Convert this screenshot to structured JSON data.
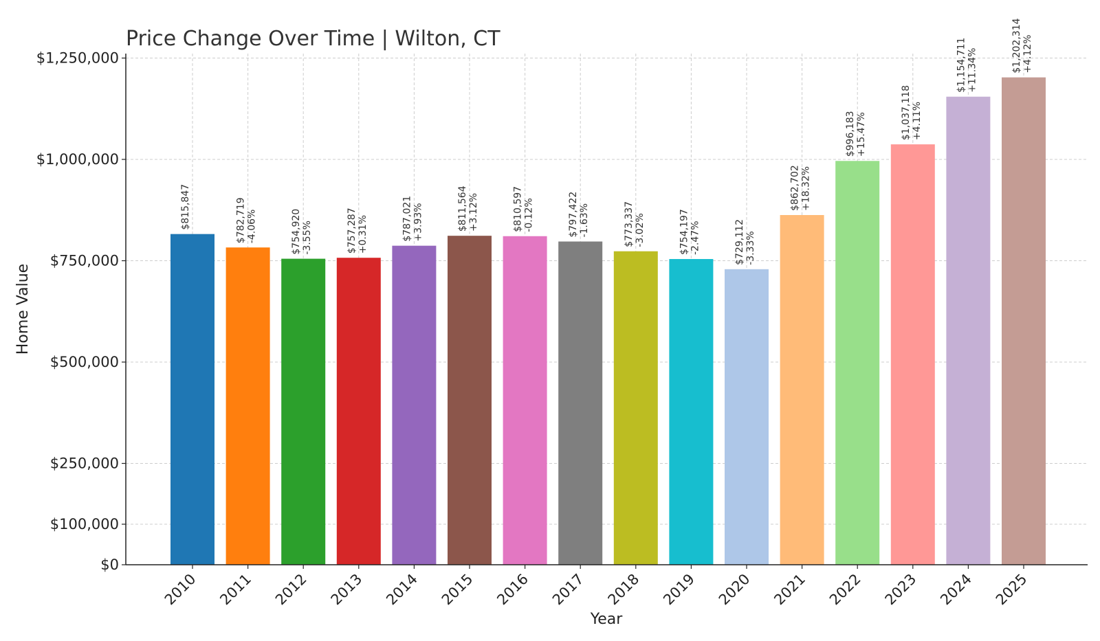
{
  "chart_data": {
    "type": "bar",
    "title": "Price Change Over Time | Wilton, CT",
    "xlabel": "Year",
    "ylabel": "Home Value",
    "categories": [
      "2010",
      "2011",
      "2012",
      "2013",
      "2014",
      "2015",
      "2016",
      "2017",
      "2018",
      "2019",
      "2020",
      "2021",
      "2022",
      "2023",
      "2024",
      "2025"
    ],
    "values": [
      815847,
      782719,
      754920,
      757287,
      787021,
      811564,
      810597,
      797422,
      773337,
      754197,
      729112,
      862702,
      996183,
      1037118,
      1154711,
      1202314
    ],
    "value_labels": [
      "$815,847",
      "$782,719",
      "$754,920",
      "$757,287",
      "$787,021",
      "$811,564",
      "$810,597",
      "$797,422",
      "$773,337",
      "$754,197",
      "$729,112",
      "$862,702",
      "$996,183",
      "$1,037,118",
      "$1,154,711",
      "$1,202,314"
    ],
    "change_labels": [
      "",
      "-4.06%",
      "-3.55%",
      "+0.31%",
      "+3.93%",
      "+3.12%",
      "-0.12%",
      "-1.63%",
      "-3.02%",
      "-2.47%",
      "-3.33%",
      "+18.32%",
      "+15.47%",
      "+4.11%",
      "+11.34%",
      "+4.12%"
    ],
    "colors": [
      "#1f77b4",
      "#ff7f0e",
      "#2ca02c",
      "#d62728",
      "#9467bd",
      "#8c564b",
      "#e377c2",
      "#7f7f7f",
      "#bcbd22",
      "#17becf",
      "#aec7e8",
      "#ffbb78",
      "#98df8a",
      "#ff9896",
      "#c5b0d5",
      "#c49c94"
    ],
    "yticks": [
      0,
      100000,
      250000,
      500000,
      750000,
      1000000,
      1250000
    ],
    "ytick_labels": [
      "$0",
      "$100,000",
      "$250,000",
      "$500,000",
      "$750,000",
      "$1,000,000",
      "$1,250,000"
    ],
    "ylim": [
      0,
      1250000
    ],
    "grid": true
  }
}
